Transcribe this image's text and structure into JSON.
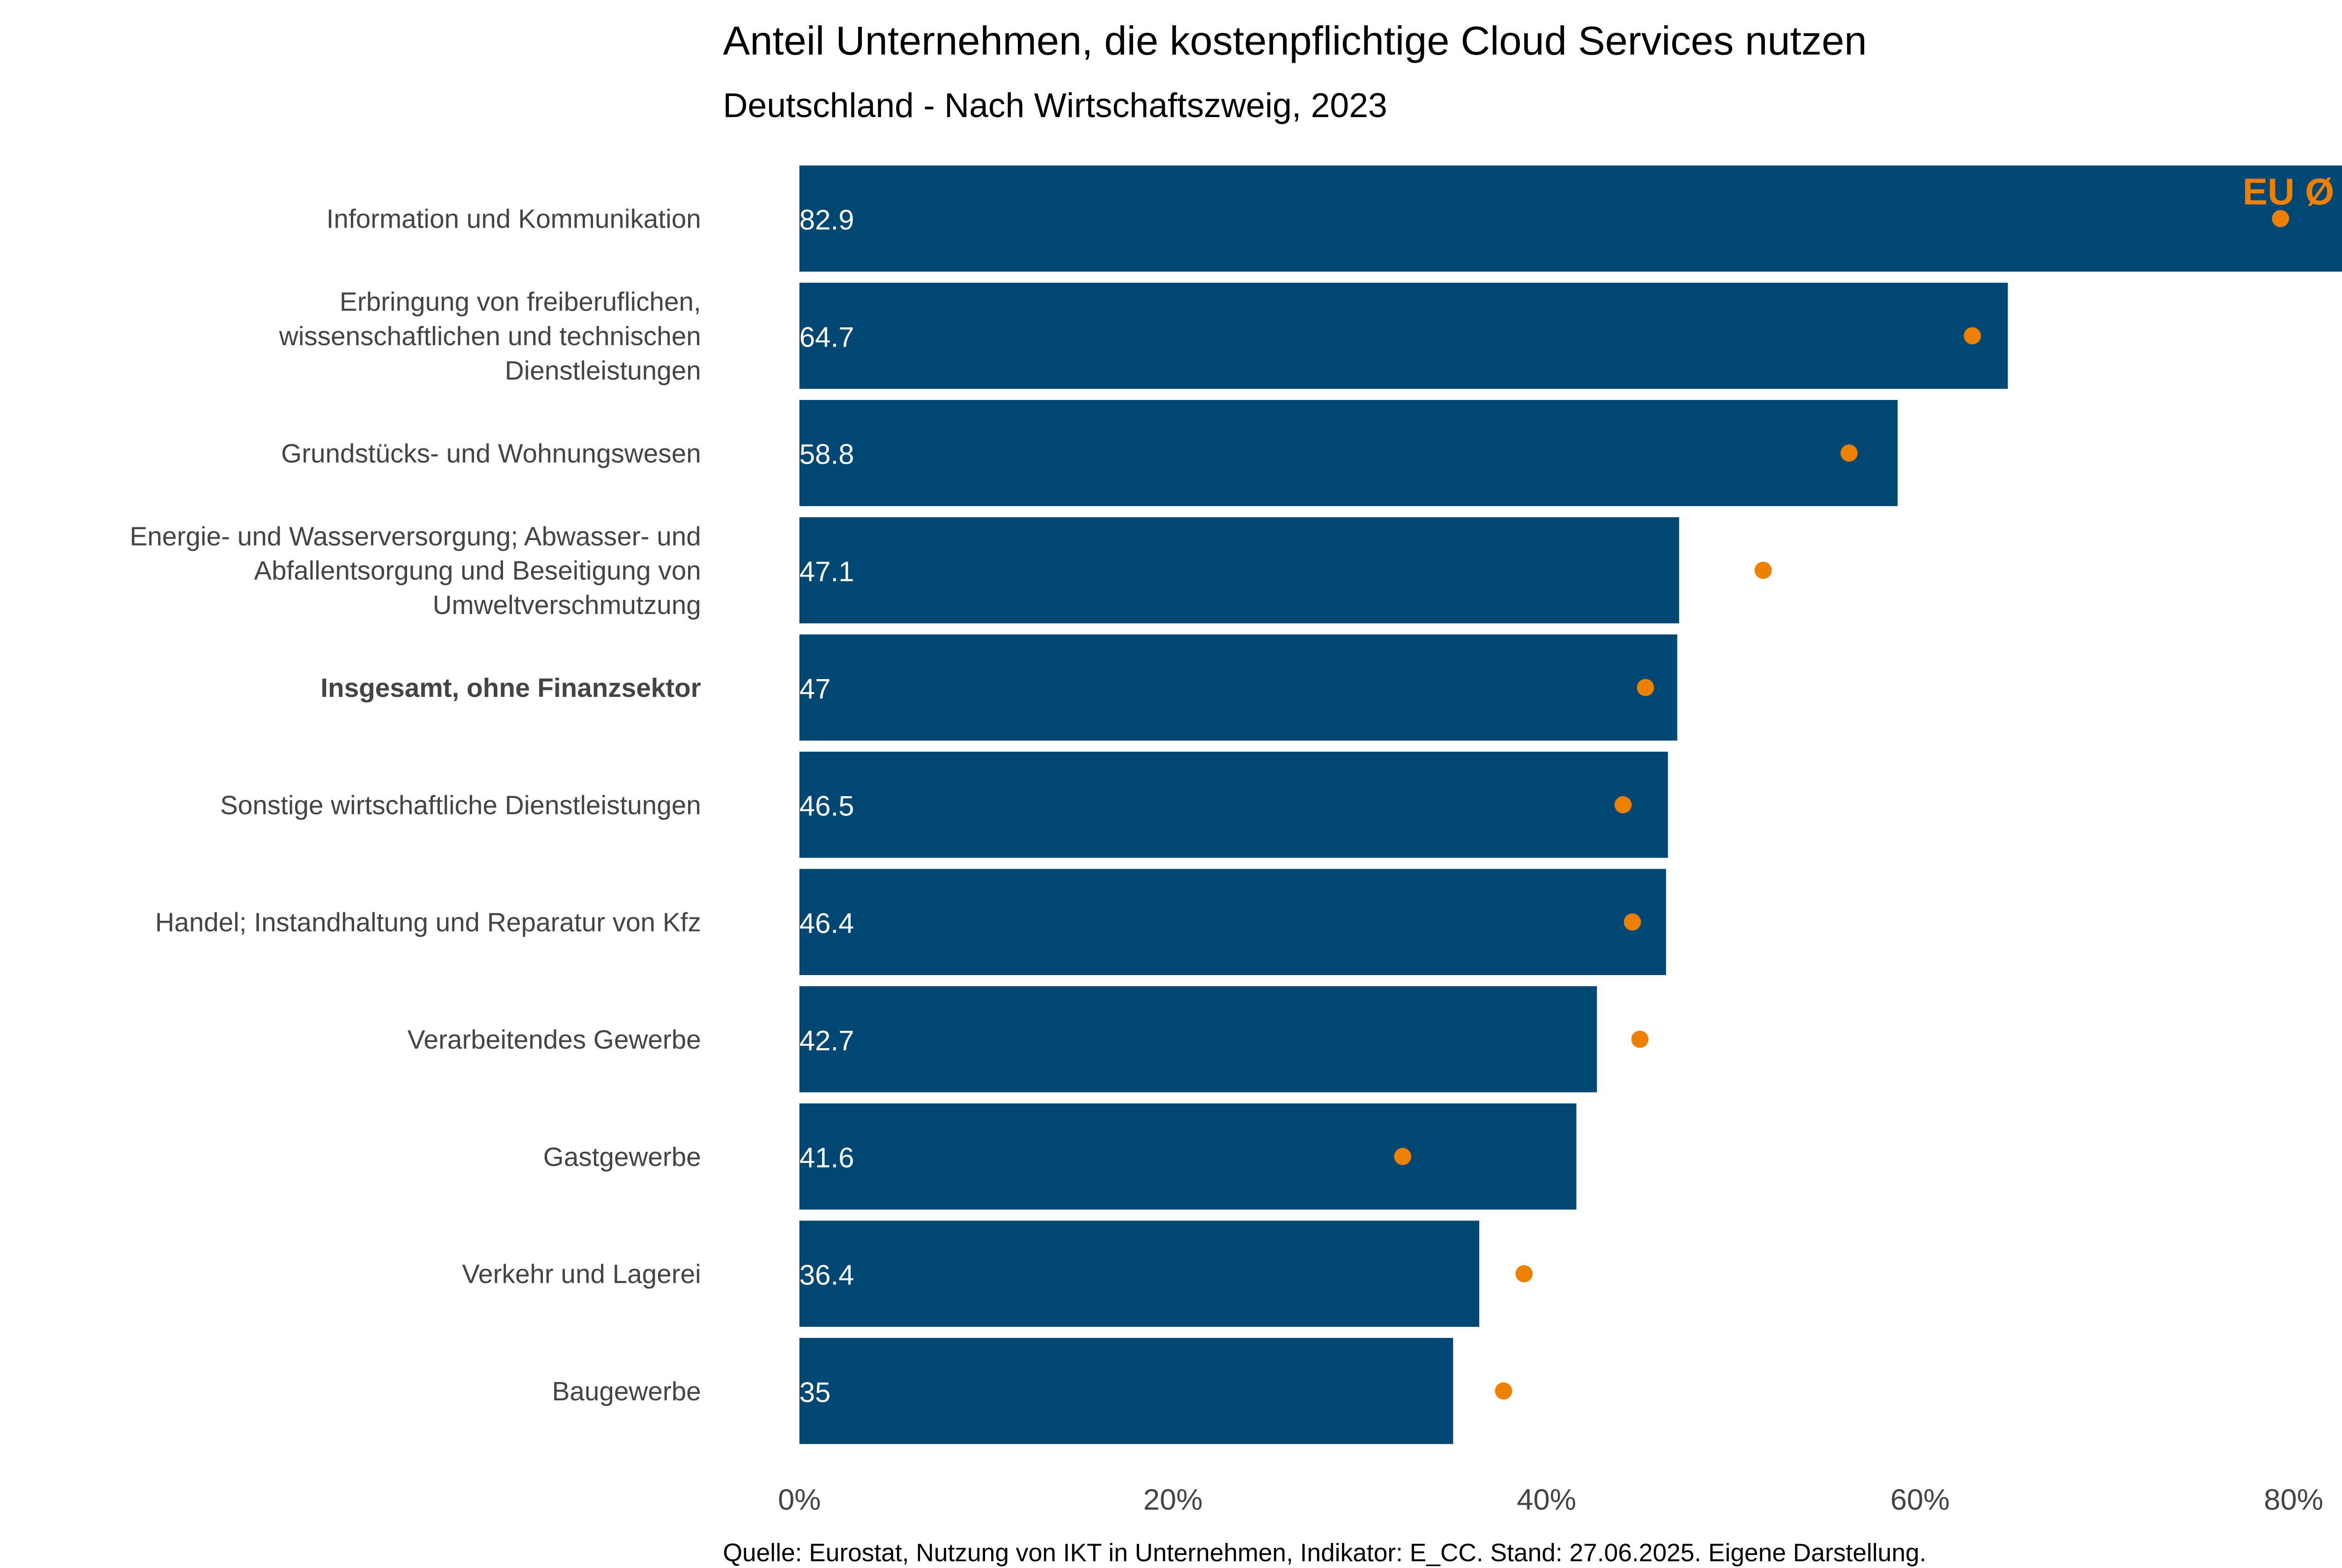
{
  "colors": {
    "bar": "#004873",
    "eu_dot": "#EE8000",
    "label": "#444444",
    "bar_text": "#ffffff"
  },
  "chart_data": {
    "type": "bar",
    "orientation": "horizontal",
    "title": "Anteil Unternehmen, die kostenpflichtige Cloud Services nutzen",
    "subtitle": "Deutschland - Nach Wirtschaftszweig, 2023",
    "caption": "Quelle: Eurostat, Nutzung von IKT in Unternehmen, Indikator: E_CC. Stand: 27.06.2025. Eigene Darstellung.",
    "eu_label": "EU Ø",
    "xlim": [
      0,
      83
    ],
    "xticks": [
      0,
      20,
      40,
      60,
      80
    ],
    "xtick_labels": [
      "0%",
      "20%",
      "40%",
      "60%",
      "80%"
    ],
    "grid": false,
    "categories": [
      [
        "Information und Kommunikation"
      ],
      [
        "Erbringung von freiberuflichen,",
        "wissenschaftlichen und technischen",
        "Dienstleistungen"
      ],
      [
        "Grundstücks- und Wohnungswesen"
      ],
      [
        "Energie- und Wasserversorgung; Abwasser- und",
        "Abfallentsorgung und Beseitigung von",
        "Umweltverschmutzung"
      ],
      [
        "Insgesamt, ohne Finanzsektor"
      ],
      [
        "Sonstige wirtschaftliche Dienstleistungen"
      ],
      [
        "Handel; Instandhaltung und Reparatur von Kfz"
      ],
      [
        "Verarbeitendes Gewerbe"
      ],
      [
        "Gastgewerbe"
      ],
      [
        "Verkehr und Lagerei"
      ],
      [
        "Baugewerbe"
      ]
    ],
    "bold_category_index": 4,
    "series": [
      {
        "name": "Deutschland",
        "values": [
          82.9,
          64.7,
          58.8,
          47.1,
          47,
          46.5,
          46.4,
          42.7,
          41.6,
          36.4,
          35
        ],
        "labels": [
          "82.9",
          "64.7",
          "58.8",
          "47.1",
          "47",
          "46.5",
          "46.4",
          "42.7",
          "41.6",
          "36.4",
          "35"
        ]
      },
      {
        "name": "EU Ø",
        "values": [
          79.3,
          62.8,
          56.2,
          51.6,
          45.3,
          44.1,
          44.6,
          45.0,
          32.3,
          38.8,
          37.7
        ]
      }
    ]
  }
}
